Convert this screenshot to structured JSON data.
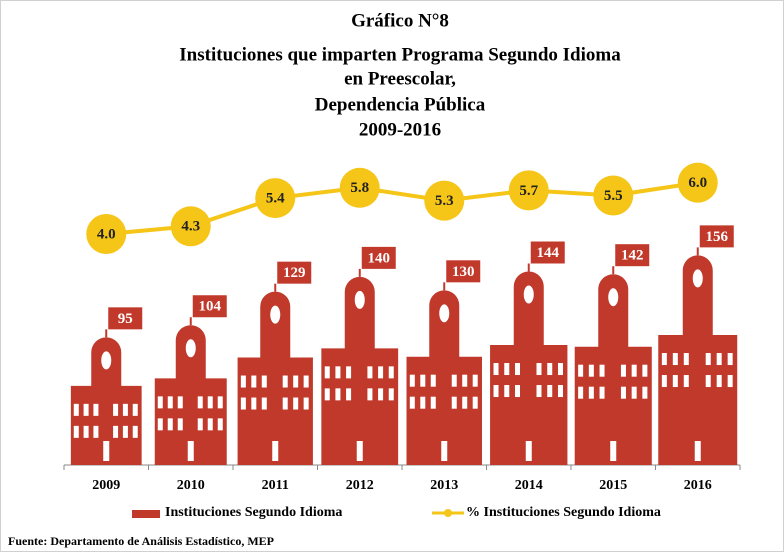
{
  "chart_data": {
    "type": "pictograph-bar-line",
    "title": [
      "Gráfico N°8",
      "Instituciones que imparten Programa Segundo Idioma",
      "en Preescolar,",
      "Dependencia Pública",
      "2009-2016"
    ],
    "categories": [
      "2009",
      "2010",
      "2011",
      "2012",
      "2013",
      "2014",
      "2015",
      "2016"
    ],
    "series": [
      {
        "name": "Instituciones Segundo Idioma",
        "color": "#c0392b",
        "values": [
          95,
          104,
          129,
          140,
          130,
          144,
          142,
          156
        ]
      },
      {
        "name": "% Instituciones Segundo Idioma",
        "color": "#f5c518",
        "axis": "y2",
        "values": [
          4.0,
          4.3,
          5.4,
          5.8,
          5.3,
          5.7,
          5.5,
          6.0
        ],
        "value_labels": [
          "4.0",
          "4.3",
          "5.4",
          "5.8",
          "5.3",
          "5.7",
          "5.5",
          "6.0"
        ]
      }
    ],
    "ylim": [
      0,
      160
    ],
    "y2lim": [
      -5,
      10
    ],
    "source": "Fuente:  Departamento  de Análisis Estadístico,  MEP"
  }
}
